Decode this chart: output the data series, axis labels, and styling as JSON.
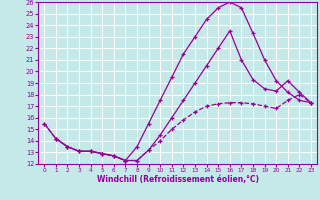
{
  "xlabel": "Windchill (Refroidissement éolien,°C)",
  "xlim": [
    -0.5,
    23.5
  ],
  "ylim": [
    12,
    26
  ],
  "xticks": [
    0,
    1,
    2,
    3,
    4,
    5,
    6,
    7,
    8,
    9,
    10,
    11,
    12,
    13,
    14,
    15,
    16,
    17,
    18,
    19,
    20,
    21,
    22,
    23
  ],
  "yticks": [
    12,
    13,
    14,
    15,
    16,
    17,
    18,
    19,
    20,
    21,
    22,
    23,
    24,
    25,
    26
  ],
  "bg_color": "#c5e8e8",
  "line_color": "#990099",
  "grid_color": "#ffffff",
  "line1_x": [
    0,
    1,
    2,
    3,
    4,
    5,
    6,
    7,
    8,
    9,
    10,
    11,
    12,
    13,
    14,
    15,
    16,
    17,
    18,
    19,
    20,
    21,
    22,
    23
  ],
  "line1_y": [
    15.5,
    14.2,
    13.5,
    13.1,
    13.1,
    12.9,
    12.7,
    12.3,
    12.3,
    13.2,
    14.0,
    15.0,
    15.8,
    16.5,
    17.0,
    17.2,
    17.3,
    17.3,
    17.2,
    17.0,
    16.8,
    17.5,
    18.0,
    17.3
  ],
  "line2_x": [
    0,
    1,
    2,
    3,
    4,
    5,
    6,
    7,
    8,
    9,
    10,
    11,
    12,
    13,
    14,
    15,
    16,
    17,
    18,
    19,
    20,
    21,
    22,
    23
  ],
  "line2_y": [
    15.5,
    14.2,
    13.5,
    13.1,
    13.1,
    12.9,
    12.7,
    12.3,
    13.5,
    15.5,
    17.5,
    19.5,
    21.5,
    23.0,
    24.5,
    25.5,
    26.0,
    25.5,
    23.3,
    21.0,
    19.2,
    18.2,
    17.5,
    17.3
  ],
  "line3_x": [
    1,
    2,
    3,
    4,
    5,
    6,
    7,
    8,
    9,
    10,
    11,
    12,
    13,
    14,
    15,
    16,
    17,
    18,
    19,
    20,
    21,
    22,
    23
  ],
  "line3_y": [
    14.2,
    13.5,
    13.1,
    13.1,
    12.9,
    12.7,
    12.3,
    12.3,
    13.2,
    14.5,
    16.0,
    17.5,
    19.0,
    20.5,
    22.0,
    23.5,
    21.0,
    19.3,
    18.5,
    18.3,
    19.2,
    18.2,
    17.3
  ]
}
